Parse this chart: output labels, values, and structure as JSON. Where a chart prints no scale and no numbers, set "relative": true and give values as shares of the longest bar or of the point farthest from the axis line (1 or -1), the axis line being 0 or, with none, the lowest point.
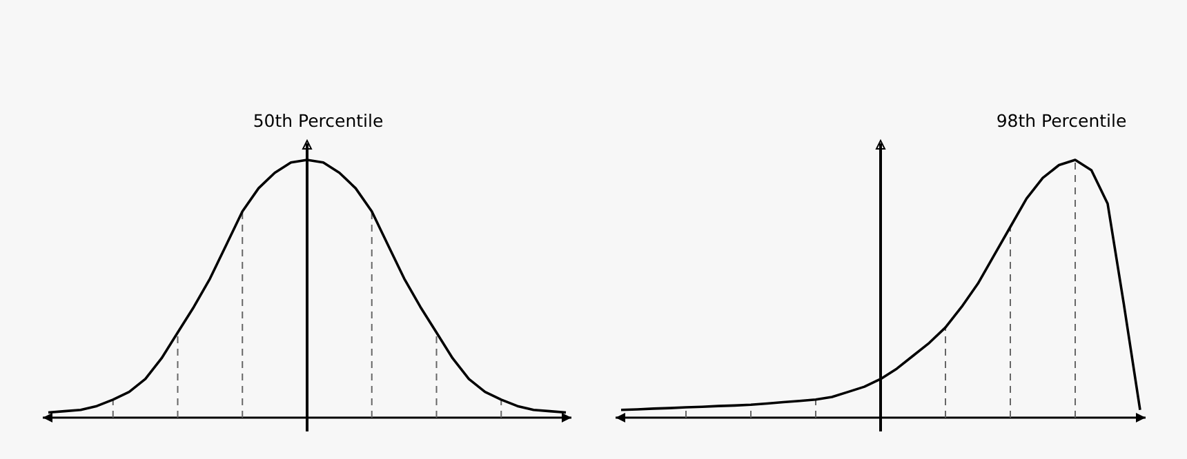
{
  "chart_data": [
    {
      "type": "line",
      "relative": true,
      "categories": [
        null,
        null,
        null,
        null,
        null,
        null,
        null,
        null,
        null,
        null,
        null,
        null,
        null,
        null,
        null,
        null,
        null,
        null,
        null,
        null,
        null,
        null,
        null,
        null,
        null,
        null,
        null,
        null,
        null,
        null,
        null,
        null,
        null
      ],
      "series": [
        {
          "color": "#000000",
          "values": [
            0.02,
            0.025,
            0.03,
            0.045,
            0.07,
            0.1,
            0.15,
            0.23,
            0.33,
            0.43,
            0.54,
            0.67,
            0.8,
            0.89,
            0.95,
            0.99,
            1,
            0.99,
            0.95,
            0.89,
            0.8,
            0.67,
            0.54,
            0.43,
            0.33,
            0.23,
            0.15,
            0.1,
            0.07,
            0.045,
            0.03,
            0.025,
            0.02
          ]
        }
      ],
      "annotations": [
        "50th Percentile"
      ]
    },
    {
      "type": "line",
      "relative": true,
      "categories": [
        null,
        null,
        null,
        null,
        null,
        null,
        null,
        null,
        null,
        null,
        null,
        null,
        null,
        null,
        null,
        null,
        null,
        null,
        null,
        null,
        null,
        null,
        null,
        null,
        null,
        null,
        null,
        null,
        null,
        null,
        null,
        null,
        null
      ],
      "series": [
        {
          "color": "#000000",
          "values": [
            0.03,
            0.032,
            0.035,
            0.037,
            0.04,
            0.042,
            0.045,
            0.047,
            0.05,
            0.055,
            0.06,
            0.065,
            0.07,
            0.08,
            0.1,
            0.12,
            0.15,
            0.19,
            0.24,
            0.29,
            0.35,
            0.43,
            0.52,
            0.63,
            0.74,
            0.85,
            0.93,
            0.98,
            1,
            0.96,
            0.83,
            0.44,
            0.03
          ]
        }
      ],
      "annotations": [
        "98th Percentile"
      ]
    }
  ]
}
